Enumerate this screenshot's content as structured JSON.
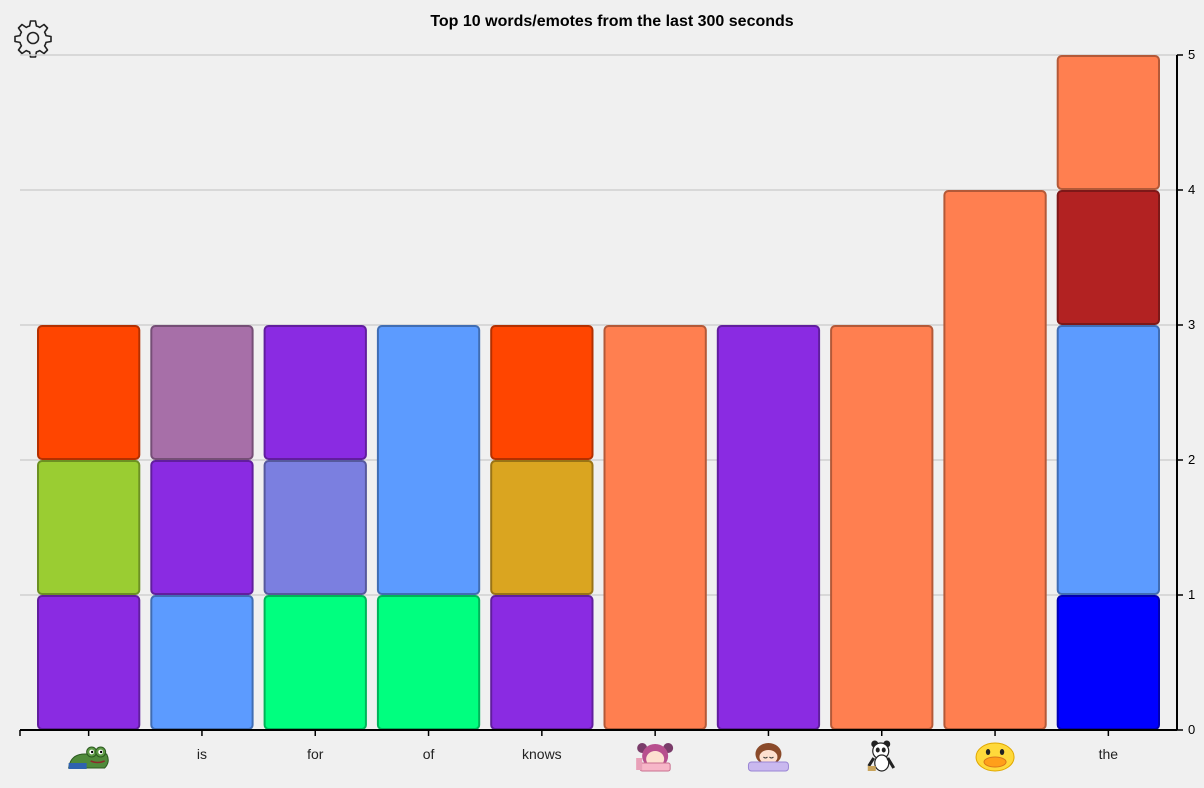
{
  "settings": {
    "icon": "gear-icon"
  },
  "chart_data": {
    "type": "bar",
    "stacked": true,
    "title": "Top 10 words/emotes from the last 300 seconds",
    "xlabel": "",
    "ylabel": "",
    "ylim": [
      0,
      5
    ],
    "yticks": [
      "0",
      "1",
      "2",
      "3",
      "4",
      "5"
    ],
    "y_axis_side": "right",
    "grid": "horizontal",
    "categories": [
      {
        "label": "",
        "emote": "frog"
      },
      {
        "label": "is"
      },
      {
        "label": "for"
      },
      {
        "label": "of"
      },
      {
        "label": "knows"
      },
      {
        "label": "",
        "emote": "pink-hair-girl"
      },
      {
        "label": "",
        "emote": "sleeping-girl"
      },
      {
        "label": "",
        "emote": "panda"
      },
      {
        "label": "",
        "emote": "duck"
      },
      {
        "label": "the"
      }
    ],
    "bars": [
      [
        {
          "value": 1,
          "color": "#8a2be2"
        },
        {
          "value": 1,
          "color": "#9acd32"
        },
        {
          "value": 1,
          "color": "#ff4500"
        }
      ],
      [
        {
          "value": 1,
          "color": "#5c9bff"
        },
        {
          "value": 1,
          "color": "#8a2be2"
        },
        {
          "value": 1,
          "color": "#a76fa8"
        }
      ],
      [
        {
          "value": 1,
          "color": "#00ff7f"
        },
        {
          "value": 1,
          "color": "#7b7fe0"
        },
        {
          "value": 1,
          "color": "#8a2be2"
        }
      ],
      [
        {
          "value": 1,
          "color": "#00ff7f"
        },
        {
          "value": 2,
          "color": "#5c9bff"
        }
      ],
      [
        {
          "value": 1,
          "color": "#8a2be2"
        },
        {
          "value": 1,
          "color": "#daa520"
        },
        {
          "value": 1,
          "color": "#ff4500"
        }
      ],
      [
        {
          "value": 3,
          "color": "#ff7f50"
        }
      ],
      [
        {
          "value": 3,
          "color": "#8a2be2"
        }
      ],
      [
        {
          "value": 3,
          "color": "#ff7f50"
        }
      ],
      [
        {
          "value": 4,
          "color": "#ff7f50"
        }
      ],
      [
        {
          "value": 1,
          "color": "#0000ff"
        },
        {
          "value": 2,
          "color": "#5c9bff"
        },
        {
          "value": 1,
          "color": "#b22222"
        },
        {
          "value": 1,
          "color": "#ff7f50"
        }
      ]
    ]
  }
}
